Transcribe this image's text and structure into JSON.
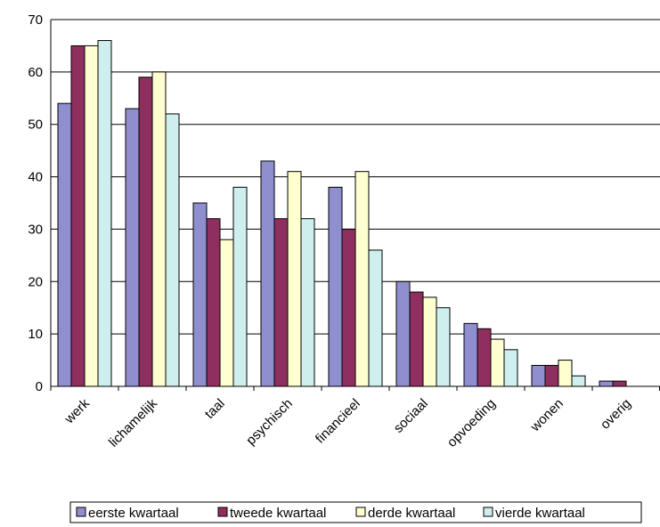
{
  "chart_data": {
    "type": "bar",
    "categories": [
      "werk",
      "lichamelijk",
      "taal",
      "psychisch",
      "financieel",
      "sociaal",
      "opvoeding",
      "wonen",
      "overig"
    ],
    "series": [
      {
        "name": "eerste kwartaal",
        "color": "#8f8fcf",
        "values": [
          54,
          53,
          35,
          43,
          38,
          20,
          12,
          4,
          1
        ]
      },
      {
        "name": "tweede kwartaal",
        "color": "#8f2f5f",
        "values": [
          65,
          59,
          32,
          32,
          30,
          18,
          11,
          4,
          1
        ]
      },
      {
        "name": "derde kwartaal",
        "color": "#ffffcf",
        "values": [
          65,
          60,
          28,
          41,
          41,
          17,
          9,
          5,
          0
        ]
      },
      {
        "name": "vierde kwartaal",
        "color": "#cfefef",
        "values": [
          66,
          52,
          38,
          32,
          26,
          15,
          7,
          2,
          0
        ]
      }
    ],
    "ylim": [
      0,
      70
    ],
    "yticks": [
      0,
      10,
      20,
      30,
      40,
      50,
      60,
      70
    ],
    "grid": true,
    "legend": "bottom"
  }
}
